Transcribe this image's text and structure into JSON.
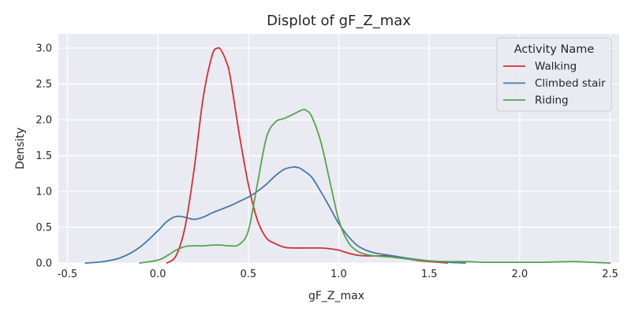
{
  "chart_data": {
    "type": "line",
    "title": "Displot of gF_Z_max",
    "xlabel": "gF_Z_max",
    "ylabel": "Density",
    "xlim": [
      -0.55,
      2.55
    ],
    "ylim": [
      0,
      3.2
    ],
    "xticks": [
      -0.5,
      0.0,
      0.5,
      1.0,
      1.5,
      2.0,
      2.5
    ],
    "xtick_labels": [
      "-0.5",
      "0.0",
      "0.5",
      "1.0",
      "1.5",
      "2.0",
      "2.5"
    ],
    "yticks": [
      0.0,
      0.5,
      1.0,
      1.5,
      2.0,
      2.5,
      3.0
    ],
    "ytick_labels": [
      "0.0",
      "0.5",
      "1.0",
      "1.5",
      "2.0",
      "2.5",
      "3.0"
    ],
    "grid": true,
    "legend": {
      "title": "Activity Name",
      "position": "top-right"
    },
    "series": [
      {
        "name": "Walking",
        "color": "#cb3335",
        "x": [
          0.05,
          0.1,
          0.15,
          0.2,
          0.25,
          0.3,
          0.33,
          0.35,
          0.38,
          0.4,
          0.45,
          0.5,
          0.55,
          0.6,
          0.65,
          0.7,
          0.75,
          0.8,
          0.85,
          0.9,
          0.95,
          1.0,
          1.05,
          1.1,
          1.15,
          1.2,
          1.25,
          1.3,
          1.35,
          1.4,
          1.45,
          1.5,
          1.6
        ],
        "y": [
          0.0,
          0.1,
          0.5,
          1.3,
          2.3,
          2.9,
          3.0,
          2.97,
          2.8,
          2.6,
          1.8,
          1.1,
          0.6,
          0.35,
          0.27,
          0.22,
          0.21,
          0.21,
          0.21,
          0.21,
          0.2,
          0.18,
          0.14,
          0.11,
          0.1,
          0.1,
          0.1,
          0.09,
          0.07,
          0.05,
          0.03,
          0.02,
          0.0
        ]
      },
      {
        "name": "Climbed stair",
        "color": "#4479a8",
        "x": [
          -0.4,
          -0.3,
          -0.2,
          -0.1,
          0.0,
          0.05,
          0.1,
          0.15,
          0.2,
          0.25,
          0.3,
          0.35,
          0.4,
          0.45,
          0.5,
          0.55,
          0.6,
          0.65,
          0.7,
          0.75,
          0.78,
          0.8,
          0.85,
          0.9,
          0.95,
          1.0,
          1.05,
          1.1,
          1.15,
          1.2,
          1.3,
          1.4,
          1.5,
          1.6,
          1.7
        ],
        "y": [
          0.0,
          0.02,
          0.08,
          0.22,
          0.45,
          0.58,
          0.65,
          0.64,
          0.61,
          0.64,
          0.7,
          0.75,
          0.8,
          0.86,
          0.92,
          1.0,
          1.1,
          1.22,
          1.31,
          1.34,
          1.33,
          1.3,
          1.2,
          1.0,
          0.78,
          0.55,
          0.38,
          0.25,
          0.18,
          0.14,
          0.1,
          0.06,
          0.03,
          0.01,
          0.0
        ]
      },
      {
        "name": "Riding",
        "color": "#55a350",
        "x": [
          -0.1,
          0.0,
          0.05,
          0.1,
          0.15,
          0.2,
          0.25,
          0.3,
          0.35,
          0.4,
          0.45,
          0.5,
          0.55,
          0.6,
          0.65,
          0.7,
          0.75,
          0.8,
          0.82,
          0.85,
          0.9,
          0.95,
          1.0,
          1.05,
          1.1,
          1.15,
          1.2,
          1.3,
          1.4,
          1.5,
          1.6,
          1.7,
          1.8,
          1.9,
          2.0,
          2.1,
          2.2,
          2.3,
          2.4,
          2.5
        ],
        "y": [
          0.0,
          0.04,
          0.1,
          0.18,
          0.23,
          0.24,
          0.24,
          0.25,
          0.25,
          0.24,
          0.26,
          0.45,
          1.1,
          1.75,
          1.97,
          2.02,
          2.08,
          2.14,
          2.13,
          2.05,
          1.7,
          1.15,
          0.6,
          0.3,
          0.17,
          0.12,
          0.1,
          0.08,
          0.05,
          0.03,
          0.02,
          0.02,
          0.01,
          0.01,
          0.01,
          0.01,
          0.015,
          0.02,
          0.01,
          0.0
        ]
      }
    ]
  }
}
